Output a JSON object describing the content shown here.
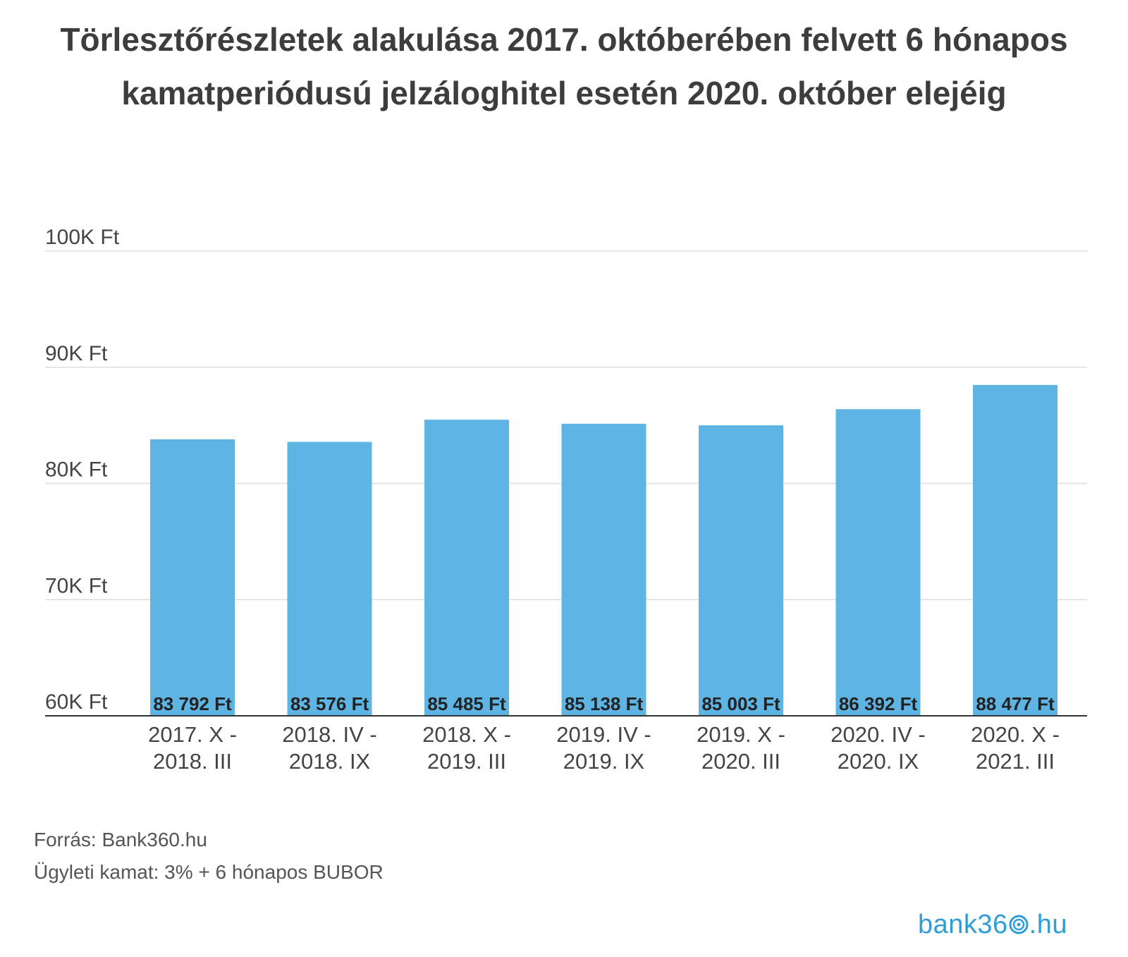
{
  "title": "Törlesztőrészletek alakulása 2017. októberében felvett 6 hónapos kamatperiódusú jelzáloghitel esetén 2020. október elejéig",
  "chart_data": {
    "type": "bar",
    "categories": [
      [
        "2017. X -",
        "2018. III"
      ],
      [
        "2018. IV -",
        "2018. IX"
      ],
      [
        "2018. X -",
        "2019. III"
      ],
      [
        "2019. IV -",
        "2019. IX"
      ],
      [
        "2019. X -",
        "2020. III"
      ],
      [
        "2020. IV -",
        "2020. IX"
      ],
      [
        "2020. X -",
        "2021. III"
      ]
    ],
    "values": [
      83792,
      83576,
      85485,
      85138,
      85003,
      86392,
      88477
    ],
    "data_labels": [
      "83 792 Ft",
      "83 576 Ft",
      "85 485 Ft",
      "85 138 Ft",
      "85 003 Ft",
      "86 392 Ft",
      "88 477 Ft"
    ],
    "ylim": [
      60000,
      100000
    ],
    "yticks": [
      60000,
      70000,
      80000,
      90000,
      100000
    ],
    "ytick_labels": [
      "60K Ft",
      "70K Ft",
      "80K Ft",
      "90K Ft",
      "100K Ft"
    ],
    "grid": true,
    "legend": "none",
    "bar_color": "#5eb5e4"
  },
  "notes": {
    "source": "Forrás: Bank360.hu",
    "rate": "Ügyleti kamat: 3% + 6 hónapos BUBOR"
  },
  "logo": {
    "text_pre": "bank36",
    "text_post": ".hu",
    "color": "#2f9ed8"
  }
}
